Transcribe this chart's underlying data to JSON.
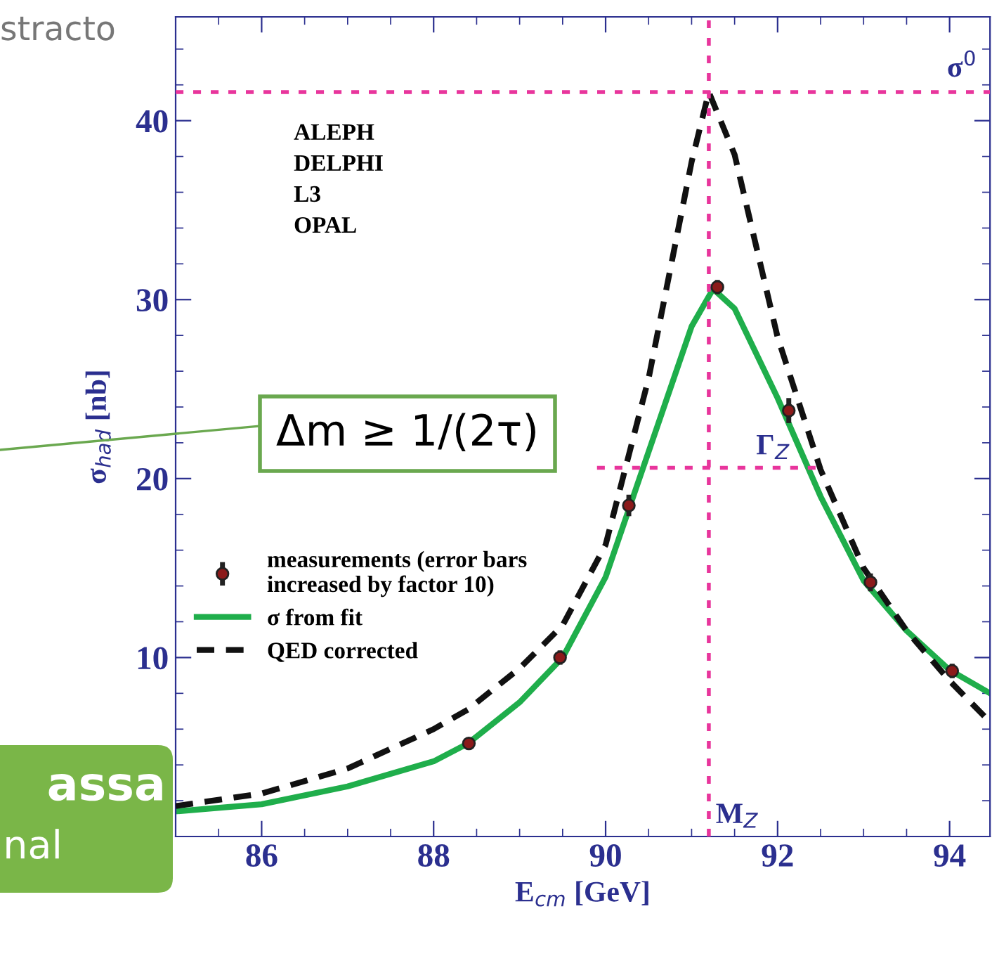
{
  "chart_data": {
    "type": "line",
    "xlabel": "E$_{cm}$ [GeV]",
    "ylabel": "σ$_{had}$ [nb]",
    "xlim": [
      85.0,
      94.47
    ],
    "ylim": [
      0,
      45.8
    ],
    "xticks": [
      86,
      88,
      90,
      92,
      94
    ],
    "yticks": [
      10,
      20,
      30,
      40
    ],
    "grid": false,
    "legend": "left",
    "series": [
      {
        "name": "σ from fit",
        "color": "#1fae4b",
        "line_style": "solid",
        "x": [
          85.0,
          86,
          87,
          88,
          88.4,
          89,
          89.5,
          90,
          90.5,
          91,
          91.25,
          91.5,
          92,
          92.5,
          93,
          93.5,
          94,
          94.47
        ],
        "values": [
          1.4,
          1.8,
          2.8,
          4.2,
          5.2,
          7.5,
          10.0,
          14.5,
          21.5,
          28.5,
          30.6,
          29.5,
          24.5,
          19.0,
          14.3,
          11.5,
          9.3,
          8.0
        ]
      },
      {
        "name": "QED corrected",
        "color": "#111111",
        "line_style": "dashed",
        "x": [
          85.0,
          86,
          87,
          88,
          88.4,
          89,
          89.5,
          90,
          90.5,
          91,
          91.2,
          91.5,
          92,
          92.5,
          93,
          93.5,
          94,
          94.47
        ],
        "values": [
          1.7,
          2.4,
          3.8,
          6.0,
          7.1,
          9.4,
          11.8,
          16.3,
          25.6,
          37.7,
          41.6,
          38.1,
          27.9,
          20.5,
          15.0,
          11.5,
          8.7,
          6.4
        ]
      },
      {
        "type": "scatter",
        "name": "measurements (error bars\nincreased by factor 10)",
        "color": "#8b1a1a",
        "marker": "circle",
        "x": [
          88.41,
          89.47,
          90.27,
          91.3,
          92.13,
          93.08,
          94.03
        ],
        "values": [
          5.2,
          10.0,
          18.5,
          30.7,
          23.8,
          14.2,
          9.25
        ],
        "errors": [
          0.3,
          0.4,
          0.6,
          0.4,
          0.7,
          0.5,
          0.4
        ]
      },
      {
        "color": "#e8359c",
        "line_style": "dotted",
        "x": [
          89.9,
          92.5
        ],
        "values": [
          20.6,
          20.6
        ]
      }
    ],
    "ref_lines": [
      {
        "axis": "x",
        "value": 91.2,
        "label": "M$_{Z}$",
        "color": "#e8359c",
        "line_style": "dotted"
      },
      {
        "axis": "y",
        "value": 41.6,
        "label": "σ$^{0}$",
        "color": "#e8359c",
        "line_style": "dotted"
      }
    ],
    "annotations": [
      {
        "text": "Γ$_{Z}$",
        "x": 91.75,
        "y": 20.6
      },
      "ALEPH\nDELPHI\nL3\nOPAL",
      "Δm ≥ 1/(2τ)",
      "stracto",
      "assa",
      "nal"
    ]
  }
}
